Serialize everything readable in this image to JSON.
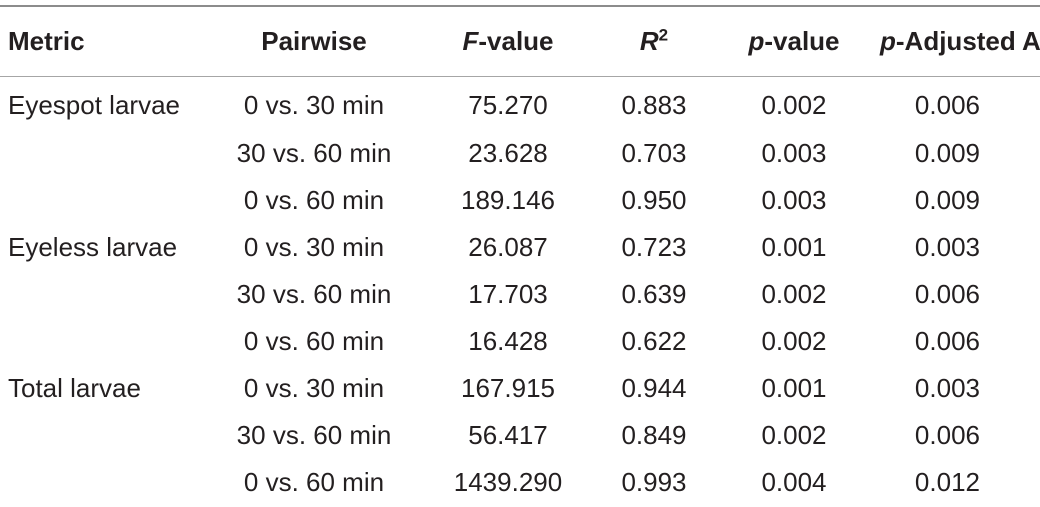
{
  "table": {
    "headers": {
      "metric": "Metric",
      "pairwise": "Pairwise",
      "f_value": {
        "italic": "F",
        "rest": "-value"
      },
      "r2": {
        "italic": "R",
        "sup": "2"
      },
      "p_value": {
        "italic": "p",
        "rest": "-value"
      },
      "p_adjusted": {
        "italic": "p",
        "rest": "-Adjusted A"
      }
    },
    "rows": [
      {
        "metric": "Eyespot larvae",
        "pairwise": "0 vs. 30 min",
        "f": "75.270",
        "r2": "0.883",
        "p": "0.002",
        "padj": "0.006"
      },
      {
        "metric": "",
        "pairwise": "30 vs. 60 min",
        "f": "23.628",
        "r2": "0.703",
        "p": "0.003",
        "padj": "0.009"
      },
      {
        "metric": "",
        "pairwise": "0 vs. 60 min",
        "f": "189.146",
        "r2": "0.950",
        "p": "0.003",
        "padj": "0.009"
      },
      {
        "metric": "Eyeless larvae",
        "pairwise": "0 vs. 30 min",
        "f": "26.087",
        "r2": "0.723",
        "p": "0.001",
        "padj": "0.003"
      },
      {
        "metric": "",
        "pairwise": "30 vs. 60 min",
        "f": "17.703",
        "r2": "0.639",
        "p": "0.002",
        "padj": "0.006"
      },
      {
        "metric": "",
        "pairwise": "0 vs. 60 min",
        "f": "16.428",
        "r2": "0.622",
        "p": "0.002",
        "padj": "0.006"
      },
      {
        "metric": "Total larvae",
        "pairwise": "0 vs. 30 min",
        "f": "167.915",
        "r2": "0.944",
        "p": "0.001",
        "padj": "0.003"
      },
      {
        "metric": "",
        "pairwise": "30 vs. 60 min",
        "f": "56.417",
        "r2": "0.849",
        "p": "0.002",
        "padj": "0.006"
      },
      {
        "metric": "",
        "pairwise": "0 vs. 60 min",
        "f": "1439.290",
        "r2": "0.993",
        "p": "0.004",
        "padj": "0.012"
      }
    ]
  }
}
